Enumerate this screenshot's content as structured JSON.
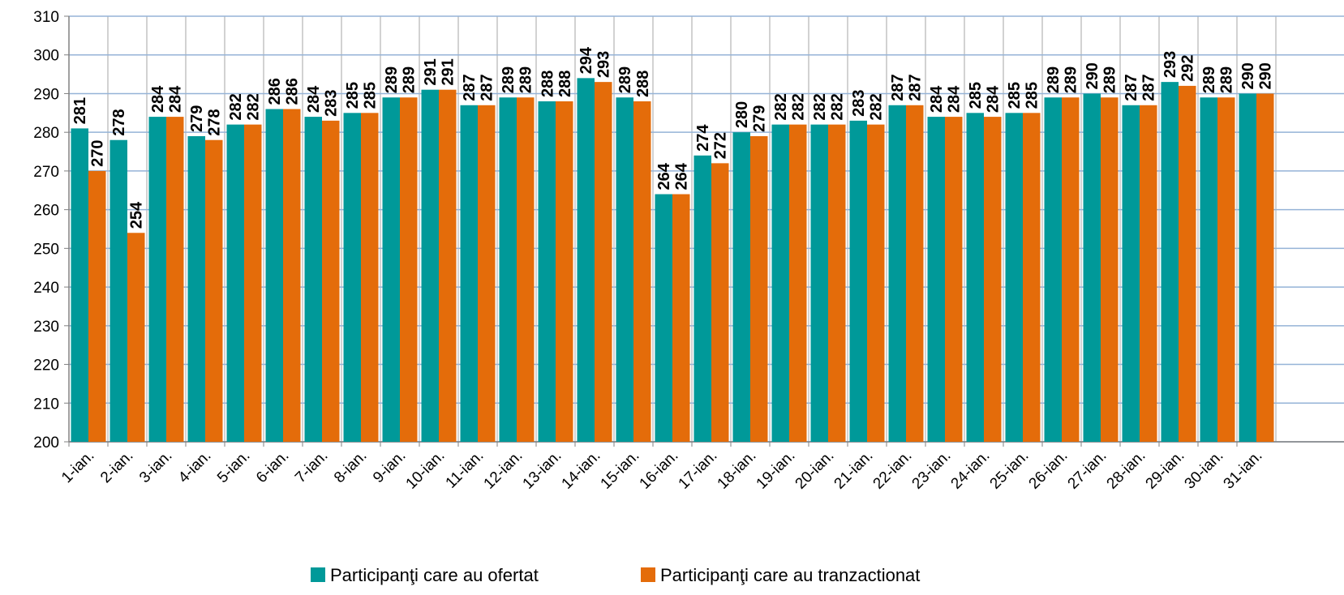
{
  "chart_data": {
    "type": "bar",
    "categories": [
      "1-ian.",
      "2-ian.",
      "3-ian.",
      "4-ian.",
      "5-ian.",
      "6-ian.",
      "7-ian.",
      "8-ian.",
      "9-ian.",
      "10-ian.",
      "11-ian.",
      "12-ian.",
      "13-ian.",
      "14-ian.",
      "15-ian.",
      "16-ian.",
      "17-ian.",
      "18-ian.",
      "19-ian.",
      "20-ian.",
      "21-ian.",
      "22-ian.",
      "23-ian.",
      "24-ian.",
      "25-ian.",
      "26-ian.",
      "27-ian.",
      "28-ian.",
      "29-ian.",
      "30-ian.",
      "31-ian."
    ],
    "series": [
      {
        "name": "Participanţi care au ofertat",
        "color": "#009999",
        "values": [
          281,
          278,
          284,
          279,
          282,
          286,
          284,
          285,
          289,
          291,
          287,
          289,
          288,
          294,
          289,
          264,
          274,
          280,
          282,
          282,
          283,
          287,
          284,
          285,
          285,
          289,
          290,
          287,
          293,
          289,
          290
        ]
      },
      {
        "name": "Participanţi care au tranzactionat",
        "color": "#e46c0a",
        "values": [
          270,
          254,
          284,
          278,
          282,
          286,
          283,
          285,
          289,
          291,
          287,
          289,
          288,
          293,
          288,
          264,
          272,
          279,
          282,
          282,
          282,
          287,
          284,
          284,
          285,
          289,
          289,
          287,
          292,
          289,
          290
        ]
      }
    ],
    "ylim": [
      200,
      310
    ],
    "yticks": [
      200,
      210,
      220,
      230,
      240,
      250,
      260,
      270,
      280,
      290,
      300,
      310
    ],
    "grid": true,
    "legend": "bottom"
  }
}
